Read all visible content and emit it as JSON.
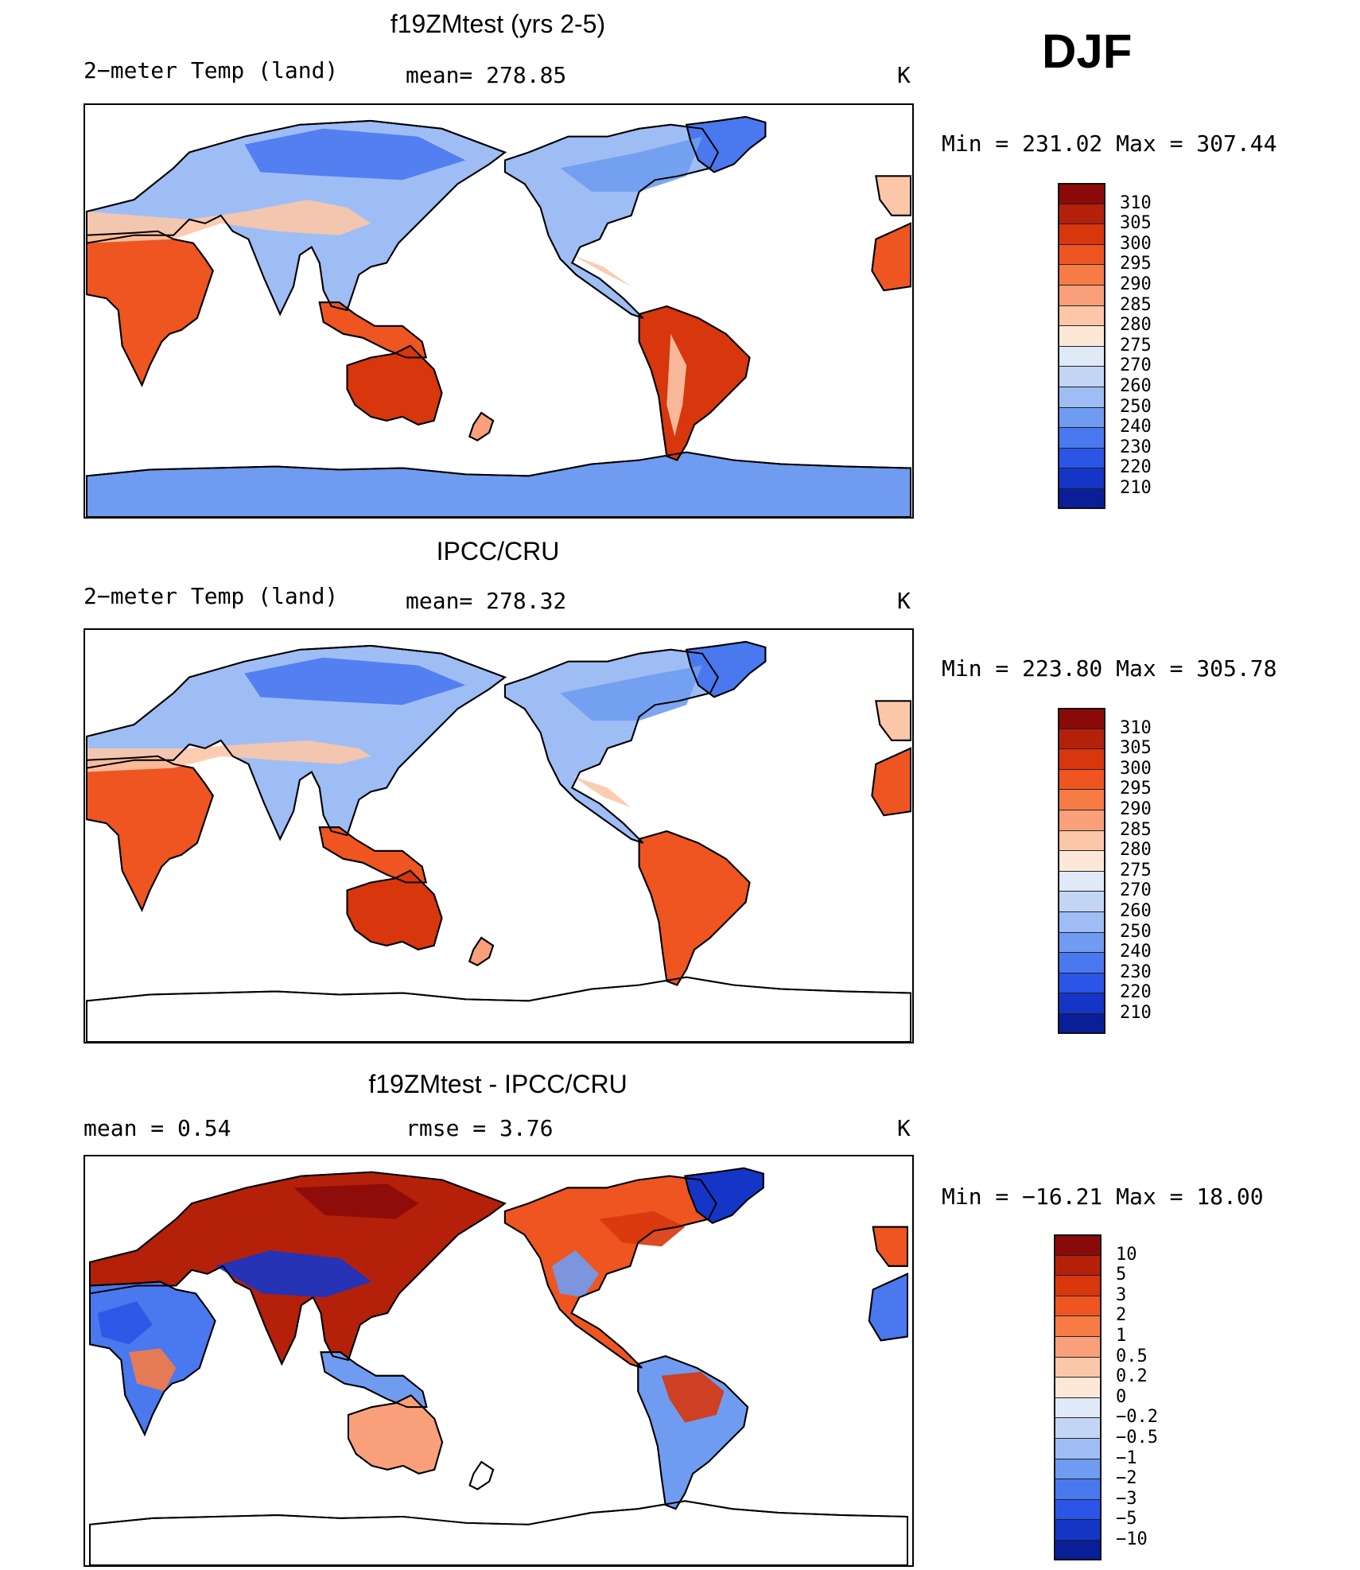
{
  "season": "DJF",
  "panels": [
    {
      "title": "f19ZMtest (yrs 2-5)",
      "left_label": "2−meter Temp (land)",
      "mid_label": "mean= 278.85",
      "units": "K",
      "minmax": "Min  =  231.02  Max  =  307.44",
      "mode": "model"
    },
    {
      "title": "IPCC/CRU",
      "left_label": "2−meter Temp (land)",
      "mid_label": "mean= 278.32",
      "units": "K",
      "minmax": "Min  =  223.80  Max  =  305.78",
      "mode": "obs"
    },
    {
      "title": "f19ZMtest - IPCC/CRU",
      "left_label": "mean  =     0.54",
      "mid_label": "rmse  =     3.76",
      "units": "K",
      "minmax": "Min  = −16.21  Max  =    18.00",
      "mode": "diff"
    }
  ],
  "colorbars": {
    "temp": {
      "labels": [
        "310",
        "305",
        "300",
        "295",
        "290",
        "285",
        "280",
        "275",
        "270",
        "260",
        "250",
        "240",
        "230",
        "220",
        "210"
      ],
      "colors": [
        "#8a0a0a",
        "#b5200a",
        "#d8360c",
        "#ee5521",
        "#f67b45",
        "#f9a07a",
        "#fcc6a8",
        "#fde8d7",
        "#dfe9f8",
        "#c3d5f5",
        "#9ebdf5",
        "#6f9cf1",
        "#4a78ef",
        "#2a55e6",
        "#1535c6",
        "#0a1e98"
      ]
    },
    "diff": {
      "labels": [
        "10",
        "5",
        "3",
        "2",
        "1",
        "0.5",
        "0.2",
        "0",
        "−0.2",
        "−0.5",
        "−1",
        "−2",
        "−3",
        "−5",
        "−10"
      ],
      "colors": [
        "#8a0a0a",
        "#b5200a",
        "#d8360c",
        "#ee5521",
        "#f67b45",
        "#f9a07a",
        "#fcc6a8",
        "#fde8d7",
        "#dfe9f8",
        "#c3d5f5",
        "#9ebdf5",
        "#6f9cf1",
        "#4a78ef",
        "#2a55e6",
        "#1535c6",
        "#0a1e98"
      ]
    }
  }
}
